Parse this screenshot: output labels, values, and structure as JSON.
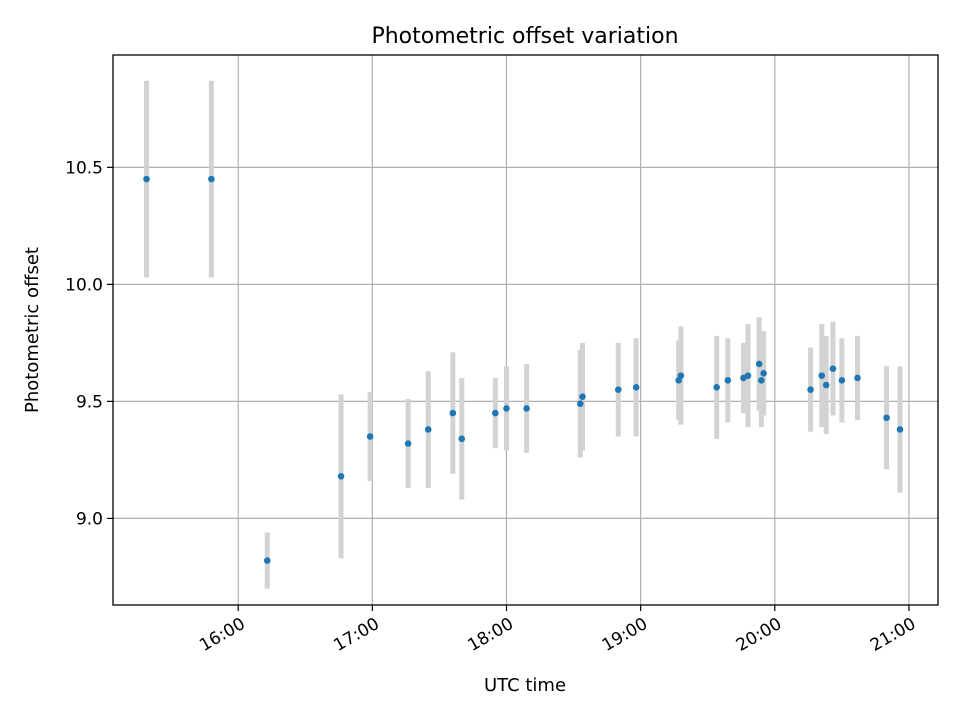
{
  "chart_data": {
    "type": "scatter",
    "title": "Photometric offset variation",
    "xlabel": "UTC time",
    "ylabel": "Photometric offset",
    "x_axis_type": "time",
    "xlim": [
      "15:04",
      "21:13"
    ],
    "ylim": [
      8.63,
      10.98
    ],
    "x_ticks": [
      "16:00",
      "17:00",
      "18:00",
      "19:00",
      "20:00",
      "21:00"
    ],
    "y_ticks": [
      9.0,
      9.5,
      10.0,
      10.5
    ],
    "y_tick_labels": [
      "9.0",
      "9.5",
      "10.0",
      "10.5"
    ],
    "grid": true,
    "colors": {
      "points": "#1f77b4",
      "errorbars": "#d3d3d3"
    },
    "points": [
      {
        "x": "15:19",
        "y": 10.45,
        "yerr": 0.42
      },
      {
        "x": "15:48",
        "y": 10.45,
        "yerr": 0.42
      },
      {
        "x": "16:13",
        "y": 8.82,
        "yerr": 0.12
      },
      {
        "x": "16:46",
        "y": 9.18,
        "yerr": 0.35
      },
      {
        "x": "16:59",
        "y": 9.35,
        "yerr": 0.19
      },
      {
        "x": "17:16",
        "y": 9.32,
        "yerr": 0.19
      },
      {
        "x": "17:25",
        "y": 9.38,
        "yerr": 0.25
      },
      {
        "x": "17:36",
        "y": 9.45,
        "yerr": 0.26
      },
      {
        "x": "17:40",
        "y": 9.34,
        "yerr": 0.26
      },
      {
        "x": "17:55",
        "y": 9.45,
        "yerr": 0.15
      },
      {
        "x": "18:00",
        "y": 9.47,
        "yerr": 0.18
      },
      {
        "x": "18:09",
        "y": 9.47,
        "yerr": 0.19
      },
      {
        "x": "18:33",
        "y": 9.49,
        "yerr": 0.23
      },
      {
        "x": "18:34",
        "y": 9.52,
        "yerr": 0.23
      },
      {
        "x": "18:50",
        "y": 9.55,
        "yerr": 0.2
      },
      {
        "x": "18:58",
        "y": 9.56,
        "yerr": 0.21
      },
      {
        "x": "19:17",
        "y": 9.59,
        "yerr": 0.17
      },
      {
        "x": "19:18",
        "y": 9.61,
        "yerr": 0.21
      },
      {
        "x": "19:34",
        "y": 9.56,
        "yerr": 0.22
      },
      {
        "x": "19:39",
        "y": 9.59,
        "yerr": 0.18
      },
      {
        "x": "19:46",
        "y": 9.6,
        "yerr": 0.15
      },
      {
        "x": "19:48",
        "y": 9.61,
        "yerr": 0.22
      },
      {
        "x": "19:53",
        "y": 9.66,
        "yerr": 0.2
      },
      {
        "x": "19:54",
        "y": 9.59,
        "yerr": 0.2
      },
      {
        "x": "19:55",
        "y": 9.62,
        "yerr": 0.18
      },
      {
        "x": "20:16",
        "y": 9.55,
        "yerr": 0.18
      },
      {
        "x": "20:21",
        "y": 9.61,
        "yerr": 0.22
      },
      {
        "x": "20:23",
        "y": 9.57,
        "yerr": 0.21
      },
      {
        "x": "20:26",
        "y": 9.64,
        "yerr": 0.2
      },
      {
        "x": "20:30",
        "y": 9.59,
        "yerr": 0.18
      },
      {
        "x": "20:37",
        "y": 9.6,
        "yerr": 0.18
      },
      {
        "x": "20:50",
        "y": 9.43,
        "yerr": 0.22
      },
      {
        "x": "20:56",
        "y": 9.38,
        "yerr": 0.27
      }
    ]
  }
}
